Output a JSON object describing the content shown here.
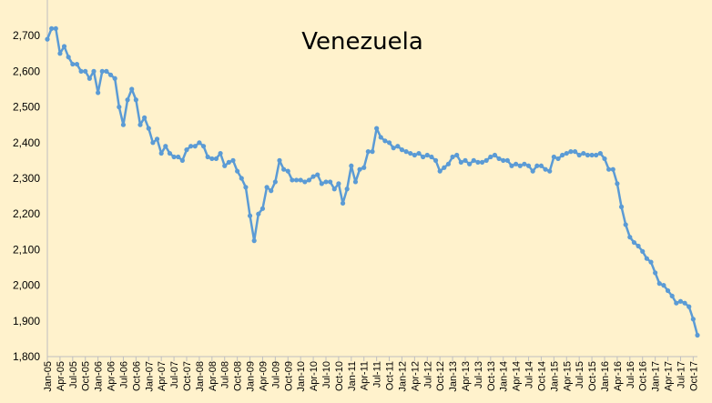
{
  "chart_data": {
    "type": "line",
    "title": "Venezuela",
    "xlabel": "",
    "ylabel": "",
    "ylim": [
      1800,
      2800
    ],
    "grid": false,
    "legend": "none",
    "y_ticks": [
      "1,800",
      "1,900",
      "2,000",
      "2,100",
      "2,200",
      "2,300",
      "2,400",
      "2,500",
      "2,600",
      "2,700"
    ],
    "x_tick_labels": [
      "Jan-05",
      "Apr-05",
      "Jul-05",
      "Oct-05",
      "Jan-06",
      "Apr-06",
      "Jul-06",
      "Oct-06",
      "Jan-07",
      "Apr-07",
      "Jul-07",
      "Oct-07",
      "Jan-08",
      "Apr-08",
      "Jul-08",
      "Oct-08",
      "Jan-09",
      "Apr-09",
      "Jul-09",
      "Oct-09",
      "Jan-10",
      "Apr-10",
      "Jul-10",
      "Oct-10",
      "Jan-11",
      "Apr-11",
      "Jul-11",
      "Oct-11",
      "Jan-12",
      "Apr-12",
      "Jul-12",
      "Oct-12",
      "Jan-13",
      "Apr-13",
      "Jul-13",
      "Oct-13",
      "Jan-14",
      "Apr-14",
      "Jul-14",
      "Oct-14",
      "Jan-15",
      "Apr-15",
      "Jul-15",
      "Oct-15",
      "Jan-16",
      "Apr-16",
      "Jul-16",
      "Oct-16",
      "Jan-17",
      "Apr-17",
      "Jul-17",
      "Oct-17"
    ],
    "series": [
      {
        "name": "",
        "color": "#5B9BD5",
        "values": [
          2690,
          2720,
          2720,
          2650,
          2670,
          2640,
          2620,
          2620,
          2600,
          2600,
          2580,
          2600,
          2540,
          2600,
          2600,
          2590,
          2580,
          2500,
          2450,
          2520,
          2550,
          2520,
          2450,
          2470,
          2440,
          2400,
          2410,
          2370,
          2390,
          2370,
          2360,
          2360,
          2350,
          2380,
          2390,
          2390,
          2400,
          2390,
          2360,
          2355,
          2355,
          2370,
          2335,
          2345,
          2350,
          2320,
          2300,
          2275,
          2195,
          2125,
          2200,
          2215,
          2275,
          2265,
          2290,
          2350,
          2325,
          2320,
          2295,
          2295,
          2295,
          2290,
          2295,
          2305,
          2310,
          2285,
          2290,
          2290,
          2270,
          2285,
          2230,
          2270,
          2335,
          2290,
          2325,
          2330,
          2375,
          2375,
          2440,
          2415,
          2405,
          2400,
          2385,
          2390,
          2380,
          2375,
          2370,
          2365,
          2370,
          2360,
          2365,
          2360,
          2350,
          2320,
          2330,
          2340,
          2360,
          2365,
          2345,
          2350,
          2340,
          2350,
          2345,
          2345,
          2350,
          2360,
          2365,
          2355,
          2350,
          2350,
          2335,
          2340,
          2335,
          2340,
          2335,
          2320,
          2335,
          2335,
          2325,
          2320,
          2360,
          2355,
          2365,
          2370,
          2375,
          2375,
          2365,
          2370,
          2365,
          2365,
          2365,
          2370,
          2355,
          2325,
          2325,
          2285,
          2220,
          2170,
          2135,
          2120,
          2110,
          2095,
          2075,
          2065,
          2035,
          2005,
          2000,
          1985,
          1970,
          1950,
          1955,
          1950,
          1940,
          1905,
          1860
        ]
      }
    ]
  }
}
